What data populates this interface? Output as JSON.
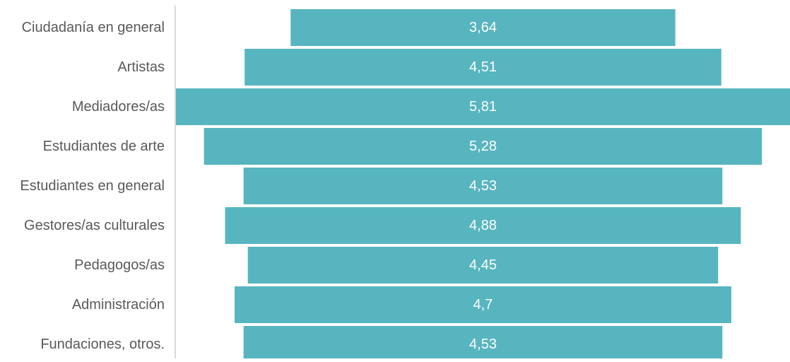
{
  "chart_data": {
    "type": "bar",
    "orientation": "horizontal",
    "layout": "centered",
    "title": "",
    "xlabel": "",
    "ylabel": "",
    "grid": false,
    "legend": "none",
    "categories": [
      "Ciudadanía en general",
      "Artistas",
      "Mediadores/as",
      "Estudiantes de arte",
      "Estudiantes en general",
      "Gestores/as culturales",
      "Pedagogos/as",
      "Administración",
      "Fundaciones, otros."
    ],
    "values": [
      3.64,
      4.51,
      5.81,
      5.28,
      4.53,
      4.88,
      4.45,
      4.7,
      4.53
    ],
    "value_labels": [
      "3,64",
      "4,51",
      "5,81",
      "5,28",
      "4,53",
      "4,88",
      "4,45",
      "4,7",
      "4,53"
    ],
    "xlim": [
      0,
      5.81
    ],
    "colors": {
      "bar": "#57b5c0",
      "axis": "#d9d9d9",
      "category_text": "#595959",
      "value_text": "#ffffff"
    }
  }
}
